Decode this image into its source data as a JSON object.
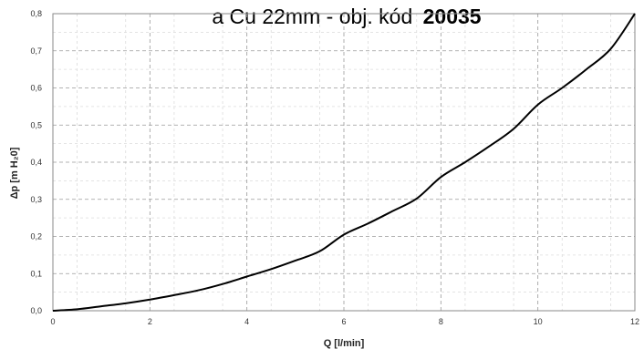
{
  "chart_data": {
    "type": "line",
    "title_visible": "a Cu 22mm - obj. kód",
    "title_code": "20035",
    "xlabel": "Q [l/min]",
    "ylabel": "Δp [m H₂0]",
    "xlim": [
      0,
      12
    ],
    "ylim": [
      0,
      0.8
    ],
    "x_ticks": [
      "0",
      "2",
      "4",
      "6",
      "8",
      "10",
      "12"
    ],
    "y_ticks": [
      "0,0",
      "0,1",
      "0,2",
      "0,3",
      "0,4",
      "0,5",
      "0,6",
      "0,7",
      "0,8"
    ],
    "grid": true,
    "series": [
      {
        "x": [
          0,
          0.5,
          1,
          1.5,
          2,
          2.5,
          3,
          3.5,
          4,
          4.5,
          5,
          5.5,
          6,
          6.5,
          7,
          7.5,
          8,
          8.5,
          9,
          9.5,
          10,
          10.5,
          11,
          11.5,
          12
        ],
        "values": [
          0.0,
          0.004,
          0.012,
          0.02,
          0.03,
          0.042,
          0.055,
          0.072,
          0.092,
          0.112,
          0.135,
          0.16,
          0.205,
          0.235,
          0.268,
          0.302,
          0.36,
          0.4,
          0.443,
          0.49,
          0.555,
          0.6,
          0.65,
          0.705,
          0.8
        ]
      }
    ],
    "line_color": "#000000"
  }
}
